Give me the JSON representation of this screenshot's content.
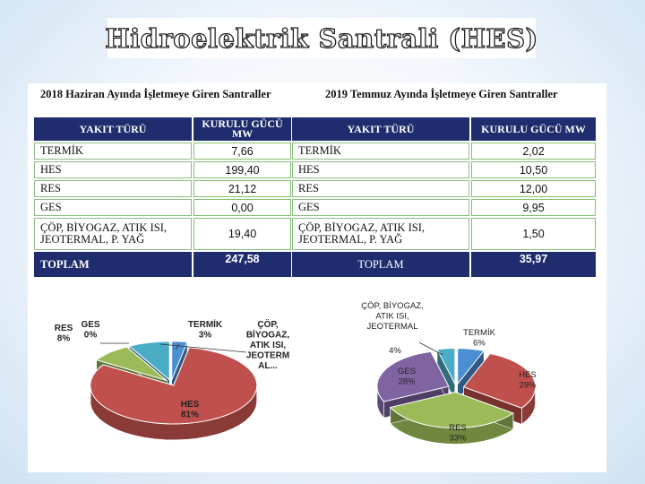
{
  "title": "Hidroelektrik Santrali (HES)",
  "tables": [
    {
      "title": "2018 Haziran Ayında İşletmeye Giren Santraller",
      "col_type": "YAKIT TÜRÜ",
      "col_power": "KURULU GÜCÜ MW",
      "rows": [
        {
          "label": "TERMİK",
          "value": "7,66"
        },
        {
          "label": "HES",
          "value": "199,40"
        },
        {
          "label": "RES",
          "value": "21,12"
        },
        {
          "label": "GES",
          "value": "0,00"
        },
        {
          "label": "ÇÖP, BİYOGAZ, ATIK ISI, JEOTERMAL,  P. YAĞ",
          "value": "19,40"
        }
      ],
      "total_label": "TOPLAM",
      "total_value": "247,58"
    },
    {
      "title": "2019 Temmuz Ayında İşletmeye Giren Santraller",
      "col_type": "YAKIT TÜRÜ",
      "col_power": "KURULU GÜCÜ MW",
      "rows": [
        {
          "label": "TERMİK",
          "value": "2,02"
        },
        {
          "label": "HES",
          "value": "10,50"
        },
        {
          "label": "RES",
          "value": "12,00"
        },
        {
          "label": "GES",
          "value": "9,95"
        },
        {
          "label": "ÇÖP, BİYOGAZ, ATIK ISI, JEOTERMAL, P. YAĞ",
          "value": "1,50"
        }
      ],
      "total_label": "TOPLAM",
      "total_value": "35,97"
    }
  ],
  "chart_data": [
    {
      "type": "pie",
      "title": "",
      "slices": [
        {
          "name": "TERMİK",
          "value": 3,
          "label": "TERMİK\n3%",
          "color": "#4a8fd4"
        },
        {
          "name": "HES",
          "value": 81,
          "label": "HES\n81%",
          "color": "#c0504d"
        },
        {
          "name": "RES",
          "value": 8,
          "label": "RES\n8%",
          "color": "#9bbb59"
        },
        {
          "name": "GES",
          "value": 0,
          "label": "GES\n0%",
          "color": "#8064a2"
        },
        {
          "name": "ÇÖP, BİYOGAZ, ATIK ISI, JEOTERMAL...",
          "value": 8,
          "label": "ÇÖP,\nBİYOGAZ,\nATIK ISI,\nJEOTERM\nAL...",
          "color": "#4bacc6"
        }
      ]
    },
    {
      "type": "pie",
      "title": "",
      "slices": [
        {
          "name": "TERMİK",
          "value": 6,
          "label": "TERMİK\n6%",
          "color": "#4a8fd4"
        },
        {
          "name": "HES",
          "value": 29,
          "label": "HES\n29%",
          "color": "#c0504d"
        },
        {
          "name": "RES",
          "value": 33,
          "label": "RES\n33%",
          "color": "#9bbb59"
        },
        {
          "name": "GES",
          "value": 28,
          "label": "GES\n28%",
          "color": "#8064a2"
        },
        {
          "name": "ÇÖP, BİYOGAZ, ATIK ISI, JEOTERMAL",
          "value": 4,
          "label": "4%",
          "color": "#4bacc6",
          "name_label": "ÇÖP, BİYOGAZ,\nATIK ISI,\nJEOTERMAL"
        }
      ]
    }
  ]
}
